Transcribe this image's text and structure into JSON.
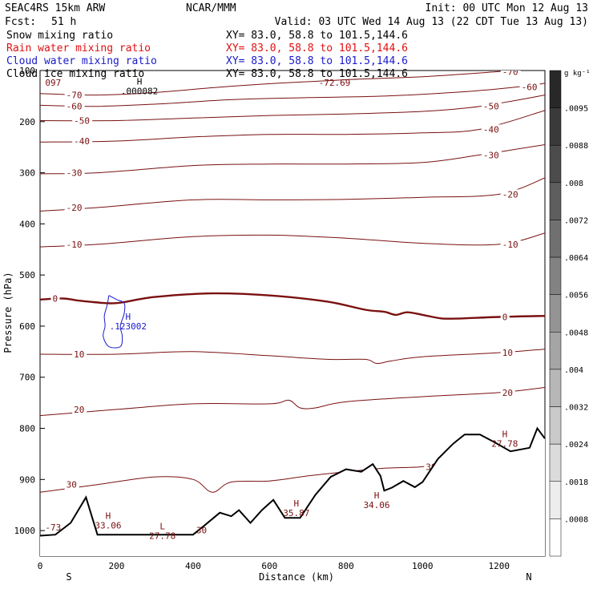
{
  "chart_data": {
    "type": "contour-cross-section",
    "header": {
      "model": "SEAC4RS 15km ARW",
      "center": "NCAR/MMM",
      "init": "Init: 00 UTC Mon 12 Aug 13",
      "fcst_label": "Fcst:",
      "fcst_value": "51 h",
      "valid": "Valid: 03 UTC Wed 14 Aug 13 (22 CDT Tue 13 Aug 13)"
    },
    "fields": [
      {
        "name": "Snow mixing ratio",
        "xy": "XY=  83.0, 58.8 to 101.5,144.6",
        "color": "#000000"
      },
      {
        "name": "Rain water mixing ratio",
        "xy": "XY=  83.0, 58.8 to 101.5,144.6",
        "color": "#e01010"
      },
      {
        "name": "Cloud water mixing ratio",
        "xy": "XY=  83.0, 58.8 to 101.5,144.6",
        "color": "#1a1acc"
      },
      {
        "name": "Cloud ice mixing ratio",
        "xy": "XY=  83.0, 58.8 to 101.5,144.6",
        "color": "#000000"
      }
    ],
    "x_axis": {
      "label": "Distance (km)",
      "range": [
        0,
        1320
      ],
      "ticks": [
        0,
        200,
        400,
        600,
        800,
        1000,
        1200
      ],
      "left_end": "S",
      "right_end": "N"
    },
    "y_axis": {
      "label": "Pressure (hPa)",
      "range": [
        1050,
        100
      ],
      "ticks": [
        100,
        200,
        300,
        400,
        500,
        600,
        700,
        800,
        900,
        1000
      ]
    },
    "colorbar": {
      "unit": "g kg⁻¹",
      "labels": [
        ".0095",
        ".0088",
        ".008",
        ".0072",
        ".0064",
        ".0056",
        ".0048",
        ".004",
        ".0032",
        ".0024",
        ".0018",
        ".0008"
      ]
    },
    "contour_color": "#7a1010",
    "temperature_contours": [
      {
        "level": -70,
        "label": "-70",
        "points": [
          [
            0,
            145
          ],
          [
            150,
            148
          ],
          [
            300,
            143
          ],
          [
            460,
            133
          ],
          [
            620,
            125
          ],
          [
            800,
            118
          ],
          [
            1000,
            112
          ],
          [
            1200,
            102
          ],
          [
            1320,
            95
          ]
        ]
      },
      {
        "level": -60,
        "label": "-60",
        "points": [
          [
            0,
            168
          ],
          [
            150,
            170
          ],
          [
            320,
            165
          ],
          [
            500,
            157
          ],
          [
            700,
            153
          ],
          [
            900,
            150
          ],
          [
            1100,
            142
          ],
          [
            1250,
            132
          ],
          [
            1320,
            125
          ]
        ]
      },
      {
        "level": -50,
        "label": "-50",
        "points": [
          [
            0,
            198
          ],
          [
            200,
            198
          ],
          [
            400,
            193
          ],
          [
            600,
            188
          ],
          [
            800,
            185
          ],
          [
            1000,
            180
          ],
          [
            1150,
            170
          ],
          [
            1320,
            148
          ]
        ]
      },
      {
        "level": -40,
        "label": "-40",
        "points": [
          [
            0,
            240
          ],
          [
            200,
            238
          ],
          [
            400,
            230
          ],
          [
            600,
            225
          ],
          [
            800,
            225
          ],
          [
            1000,
            222
          ],
          [
            1150,
            215
          ],
          [
            1320,
            178
          ]
        ]
      },
      {
        "level": -30,
        "label": "-30",
        "points": [
          [
            0,
            302
          ],
          [
            150,
            300
          ],
          [
            400,
            286
          ],
          [
            600,
            283
          ],
          [
            800,
            283
          ],
          [
            1000,
            280
          ],
          [
            1150,
            265
          ],
          [
            1320,
            245
          ]
        ]
      },
      {
        "level": -20,
        "label": "-20",
        "points": [
          [
            0,
            375
          ],
          [
            150,
            368
          ],
          [
            400,
            353
          ],
          [
            600,
            353
          ],
          [
            800,
            352
          ],
          [
            1000,
            348
          ],
          [
            1200,
            342
          ],
          [
            1320,
            310
          ]
        ]
      },
      {
        "level": -10,
        "label": "-10",
        "points": [
          [
            0,
            445
          ],
          [
            150,
            440
          ],
          [
            400,
            425
          ],
          [
            600,
            422
          ],
          [
            800,
            428
          ],
          [
            1000,
            438
          ],
          [
            1200,
            440
          ],
          [
            1320,
            418
          ]
        ]
      },
      {
        "level": 0,
        "label": "0",
        "points": [
          [
            0,
            548
          ],
          [
            60,
            546
          ],
          [
            100,
            550
          ],
          [
            140,
            553
          ],
          [
            200,
            555
          ],
          [
            300,
            543
          ],
          [
            450,
            536
          ],
          [
            600,
            540
          ],
          [
            750,
            552
          ],
          [
            850,
            568
          ],
          [
            900,
            572
          ],
          [
            930,
            578
          ],
          [
            960,
            573
          ],
          [
            1000,
            578
          ],
          [
            1050,
            585
          ],
          [
            1100,
            585
          ],
          [
            1200,
            582
          ],
          [
            1320,
            580
          ]
        ]
      },
      {
        "level": 10,
        "label": "10",
        "points": [
          [
            0,
            655
          ],
          [
            200,
            655
          ],
          [
            400,
            650
          ],
          [
            600,
            658
          ],
          [
            750,
            665
          ],
          [
            850,
            665
          ],
          [
            880,
            673
          ],
          [
            920,
            668
          ],
          [
            1000,
            660
          ],
          [
            1200,
            652
          ],
          [
            1320,
            645
          ]
        ]
      },
      {
        "level": 20,
        "label": "20",
        "points": [
          [
            0,
            775
          ],
          [
            200,
            763
          ],
          [
            400,
            752
          ],
          [
            600,
            752
          ],
          [
            650,
            745
          ],
          [
            680,
            760
          ],
          [
            720,
            760
          ],
          [
            800,
            748
          ],
          [
            1000,
            738
          ],
          [
            1200,
            730
          ],
          [
            1320,
            720
          ]
        ]
      },
      {
        "level": 30,
        "label": "30",
        "points": [
          [
            0,
            925
          ],
          [
            150,
            910
          ],
          [
            300,
            895
          ],
          [
            400,
            900
          ],
          [
            450,
            925
          ],
          [
            500,
            905
          ],
          [
            600,
            903
          ],
          [
            700,
            893
          ],
          [
            800,
            885
          ],
          [
            900,
            878
          ],
          [
            1000,
            875
          ],
          [
            1050,
            865
          ]
        ]
      }
    ],
    "terrain": [
      [
        0,
        1010
      ],
      [
        40,
        1008
      ],
      [
        80,
        985
      ],
      [
        120,
        935
      ],
      [
        150,
        1008
      ],
      [
        300,
        1008
      ],
      [
        400,
        1008
      ],
      [
        430,
        990
      ],
      [
        470,
        965
      ],
      [
        500,
        972
      ],
      [
        520,
        960
      ],
      [
        550,
        985
      ],
      [
        580,
        960
      ],
      [
        610,
        940
      ],
      [
        640,
        975
      ],
      [
        680,
        975
      ],
      [
        720,
        930
      ],
      [
        760,
        895
      ],
      [
        800,
        880
      ],
      [
        840,
        885
      ],
      [
        870,
        870
      ],
      [
        890,
        893
      ],
      [
        900,
        922
      ],
      [
        920,
        916
      ],
      [
        950,
        903
      ],
      [
        980,
        915
      ],
      [
        1000,
        905
      ],
      [
        1040,
        860
      ],
      [
        1080,
        830
      ],
      [
        1110,
        812
      ],
      [
        1150,
        812
      ],
      [
        1190,
        828
      ],
      [
        1230,
        845
      ],
      [
        1280,
        838
      ],
      [
        1300,
        800
      ],
      [
        1320,
        820
      ]
    ],
    "extrema": [
      {
        "kind": "H",
        "value": ".000082",
        "x": 260,
        "p": 140,
        "color": "#000000"
      },
      {
        "kind": "H",
        "value": ".123002",
        "x": 230,
        "p": 600,
        "color": "#1a1acc"
      },
      {
        "kind": "H",
        "value": "33.06",
        "x": 178,
        "p": 990,
        "color": "#7a1010"
      },
      {
        "kind": "L",
        "value": "27.78",
        "x": 320,
        "p": 1010,
        "color": "#7a1010"
      },
      {
        "kind": "H",
        "value": "35.87",
        "x": 670,
        "p": 965,
        "color": "#7a1010"
      },
      {
        "kind": "H",
        "value": "34.06",
        "x": 880,
        "p": 950,
        "color": "#7a1010"
      },
      {
        "kind": "H",
        "value": "27.78",
        "x": 1215,
        "p": 830,
        "color": "#7a1010"
      }
    ],
    "extra_labels": [
      {
        "text": "-72.69",
        "x": 720,
        "p": 130
      },
      {
        "text": "-73",
        "x": 5,
        "p": 1000
      },
      {
        "text": "097",
        "x": 5,
        "p": 130
      },
      {
        "text": "30",
        "x": 400,
        "p": 1005
      }
    ],
    "cloud_water_contour": [
      [
        180,
        540
      ],
      [
        175,
        560
      ],
      [
        168,
        580
      ],
      [
        170,
        600
      ],
      [
        165,
        620
      ],
      [
        180,
        640
      ],
      [
        210,
        640
      ],
      [
        215,
        620
      ],
      [
        210,
        600
      ],
      [
        220,
        575
      ],
      [
        220,
        555
      ],
      [
        200,
        548
      ],
      [
        180,
        540
      ]
    ]
  }
}
